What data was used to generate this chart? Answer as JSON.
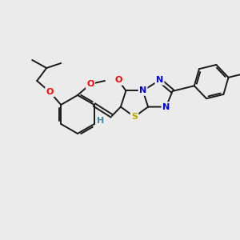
{
  "background_color": "#ebebeb",
  "bond_color": "#1a1a1a",
  "atom_colors": {
    "O": "#ff0000",
    "N": "#0000ee",
    "S": "#bbaa00",
    "H": "#4488aa",
    "C": "#1a1a1a"
  },
  "figsize": [
    3.0,
    3.0
  ],
  "dpi": 100
}
